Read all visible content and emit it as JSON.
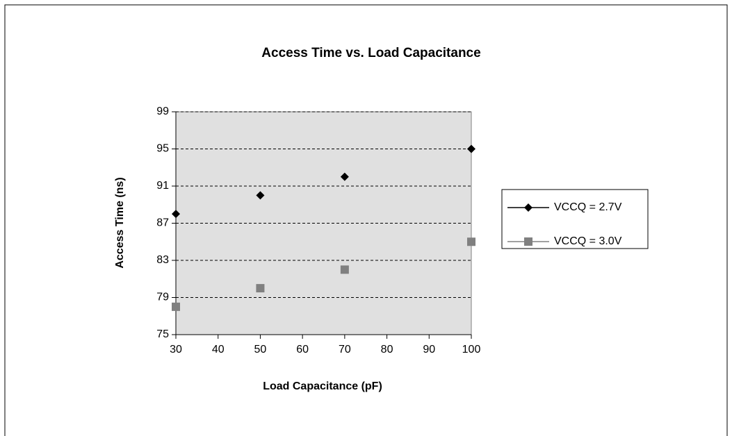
{
  "chart_data": {
    "type": "scatter",
    "title": "Access Time vs. Load Capacitance",
    "x_label": "Load Capacitance (pF)",
    "y_label": "Access Time (ns)",
    "xlim": [
      30,
      100
    ],
    "xticks": [
      30,
      40,
      50,
      60,
      70,
      80,
      90,
      100
    ],
    "ylim": [
      75,
      99
    ],
    "yticks": [
      75,
      79,
      83,
      87,
      91,
      95,
      99
    ],
    "grid": true,
    "legend": "right",
    "series": [
      {
        "name": "VCCQ = 2.7V",
        "color": "#000000",
        "marker": "diamond",
        "x": [
          30,
          50,
          70,
          100
        ],
        "values": [
          88,
          90,
          92,
          95
        ]
      },
      {
        "name": "VCCQ = 3.0V",
        "color": "#808080",
        "marker": "square",
        "x": [
          30,
          50,
          70,
          100
        ],
        "values": [
          78,
          80,
          82,
          85
        ]
      }
    ]
  }
}
